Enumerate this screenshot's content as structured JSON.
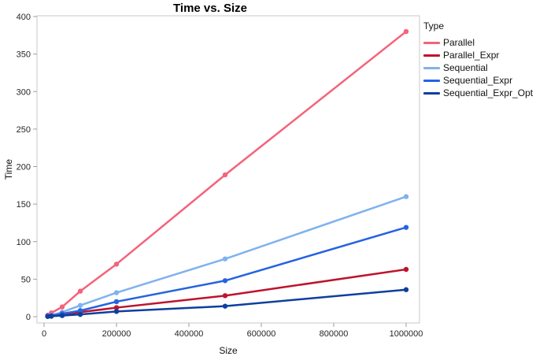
{
  "title": "Time vs. Size",
  "axes": {
    "x_label": "Size",
    "y_label": "Time"
  },
  "legend": {
    "title": "Type",
    "position": "right"
  },
  "colors": {
    "plot_border": "#c9c9c9",
    "tick_mark": "#9e9e9e",
    "tick_label": "#262626",
    "background": "#ffffff"
  },
  "chart_data": {
    "type": "line",
    "title": "Time vs. Size",
    "xlabel": "Size",
    "ylabel": "Time",
    "xlim": [
      0,
      1000000
    ],
    "ylim": [
      0,
      400
    ],
    "grid": false,
    "legend_title": "Type",
    "legend_position": "right",
    "x_tick_labels": [
      "0",
      "200000",
      "400000",
      "600000",
      "800000",
      "1000000"
    ],
    "y_tick_labels": [
      "0",
      "50",
      "100",
      "150",
      "200",
      "250",
      "300",
      "350",
      "400"
    ],
    "markers": "filled-circle",
    "x": [
      10000,
      20000,
      50000,
      100000,
      200000,
      500000,
      1000000
    ],
    "series": [
      {
        "name": "Parallel",
        "color": "#F4637A",
        "values": [
          2,
          5,
          13,
          34,
          70,
          189,
          380
        ]
      },
      {
        "name": "Parallel_Expr",
        "color": "#BE132D",
        "values": [
          0.5,
          1,
          2.5,
          6,
          12,
          28,
          63
        ]
      },
      {
        "name": "Sequential",
        "color": "#7FB2F0",
        "values": [
          1,
          2,
          6,
          15,
          32,
          77,
          160
        ]
      },
      {
        "name": "Sequential_Expr",
        "color": "#2563E0",
        "values": [
          0.7,
          1.4,
          4,
          8,
          20,
          48,
          119
        ]
      },
      {
        "name": "Sequential_Expr_Opt",
        "color": "#0D3F9E",
        "values": [
          0.3,
          0.6,
          1.5,
          3,
          7,
          14,
          36
        ]
      }
    ]
  }
}
